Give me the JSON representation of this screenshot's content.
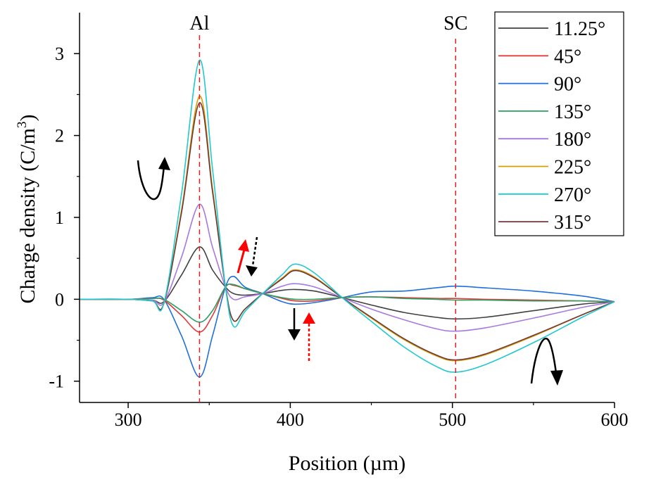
{
  "chart_data": {
    "type": "line",
    "xlabel": "Position (µm)",
    "ylabel_main": "Charge density (C/m",
    "ylabel_sup": "3",
    "ylabel_close": ")",
    "xlim": [
      270,
      600
    ],
    "ylim": [
      -1.26,
      3.5
    ],
    "xticks": [
      300,
      400,
      500,
      600
    ],
    "xtick_labels": [
      "300",
      "400",
      "500",
      "600"
    ],
    "yticks": [
      -1,
      0,
      1,
      2,
      3
    ],
    "ytick_labels": [
      "-1",
      "0",
      "1",
      "2",
      "3"
    ],
    "legend_position": "top-right",
    "annotations": {
      "al_label": "Al",
      "al_x": 344,
      "sc_label": "SC",
      "sc_x": 502
    },
    "x": [
      270,
      300,
      315,
      322,
      333,
      344,
      352,
      360,
      365,
      372,
      383,
      395,
      403,
      415,
      432,
      450,
      470,
      490,
      502,
      520,
      550,
      580,
      600
    ],
    "series": [
      {
        "name": "11.25°",
        "color": "#404040",
        "values": [
          0,
          0,
          -0.01,
          -0.03,
          0.3,
          0.64,
          0.36,
          0.15,
          0.07,
          0.05,
          0.07,
          0.11,
          0.12,
          0.1,
          0.02,
          -0.07,
          -0.16,
          -0.22,
          -0.24,
          -0.22,
          -0.14,
          -0.06,
          -0.03
        ]
      },
      {
        "name": "45°",
        "color": "#e03a3a",
        "values": [
          0,
          0,
          0.01,
          -0.01,
          -0.2,
          -0.4,
          -0.2,
          0.15,
          0.17,
          0.13,
          0.07,
          0.01,
          -0.02,
          -0.02,
          0.02,
          0.03,
          0.02,
          0.01,
          0.01,
          0.0,
          -0.01,
          -0.02,
          -0.03
        ]
      },
      {
        "name": "90°",
        "color": "#1f6fdc",
        "values": [
          0,
          0,
          0.02,
          0.0,
          -0.45,
          -0.95,
          -0.45,
          0.15,
          0.28,
          0.15,
          0.07,
          -0.03,
          -0.06,
          -0.04,
          0.02,
          0.09,
          0.1,
          0.14,
          0.16,
          0.14,
          0.1,
          0.04,
          -0.03
        ]
      },
      {
        "name": "135°",
        "color": "#2aa062",
        "values": [
          0,
          0,
          0.01,
          0.0,
          -0.14,
          -0.28,
          -0.14,
          0.15,
          0.18,
          0.13,
          0.07,
          0.02,
          0.0,
          0.0,
          0.02,
          0.03,
          0.01,
          0.0,
          -0.01,
          -0.01,
          -0.02,
          -0.02,
          -0.03
        ]
      },
      {
        "name": "180°",
        "color": "#a878e0",
        "values": [
          0,
          0,
          -0.01,
          -0.04,
          0.52,
          1.16,
          0.64,
          0.15,
          0.0,
          0.03,
          0.07,
          0.16,
          0.19,
          0.15,
          0.02,
          -0.12,
          -0.25,
          -0.36,
          -0.39,
          -0.35,
          -0.23,
          -0.1,
          -0.03
        ]
      },
      {
        "name": "225°",
        "color": "#d4a000",
        "values": [
          0,
          0,
          -0.02,
          -0.05,
          1.1,
          2.48,
          1.36,
          0.15,
          -0.26,
          -0.12,
          0.07,
          0.26,
          0.36,
          0.27,
          0.02,
          -0.23,
          -0.49,
          -0.69,
          -0.75,
          -0.68,
          -0.45,
          -0.19,
          -0.03
        ]
      },
      {
        "name": "270°",
        "color": "#20c8d0",
        "values": [
          0,
          0,
          -0.02,
          -0.05,
          1.3,
          2.92,
          1.6,
          0.15,
          -0.33,
          -0.15,
          0.07,
          0.3,
          0.43,
          0.32,
          0.02,
          -0.27,
          -0.58,
          -0.82,
          -0.89,
          -0.8,
          -0.53,
          -0.22,
          -0.03
        ]
      },
      {
        "name": "315°",
        "color": "#703838",
        "values": [
          0,
          0,
          -0.02,
          -0.05,
          1.07,
          2.4,
          1.32,
          0.15,
          -0.26,
          -0.12,
          0.07,
          0.25,
          0.35,
          0.26,
          0.02,
          -0.22,
          -0.48,
          -0.68,
          -0.74,
          -0.67,
          -0.44,
          -0.19,
          -0.03
        ]
      }
    ]
  }
}
